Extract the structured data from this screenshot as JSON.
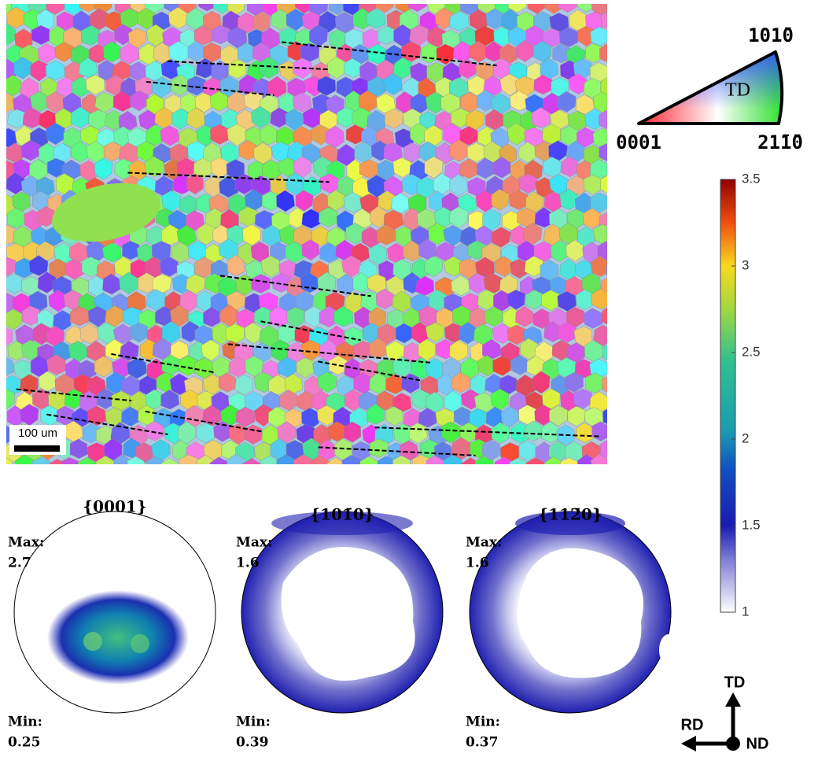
{
  "ipf": {
    "label_top": "101̄0",
    "label_center": "TD",
    "label_left": "0001",
    "label_right": "21̄1̄0"
  },
  "scale_bar": "100 um",
  "colorbar": {
    "lim": [
      1,
      3.5
    ],
    "ticks": [
      1,
      1.5,
      2,
      2.5,
      3,
      3.5
    ]
  },
  "pole_figures": [
    {
      "title": "{0001}",
      "max_label": "Max:",
      "max": 2.7,
      "min_label": "Min:",
      "min": 0.25
    },
    {
      "title": "{101̄0}",
      "max_label": "Max:",
      "max": 1.6,
      "min_label": "Min:",
      "min": 0.39
    },
    {
      "title": "{112̄0}",
      "max_label": "Max:",
      "max": 1.6,
      "min_label": "Min:",
      "min": 0.37
    }
  ],
  "axes": {
    "up": "TD",
    "left": "RD",
    "out": "ND"
  }
}
